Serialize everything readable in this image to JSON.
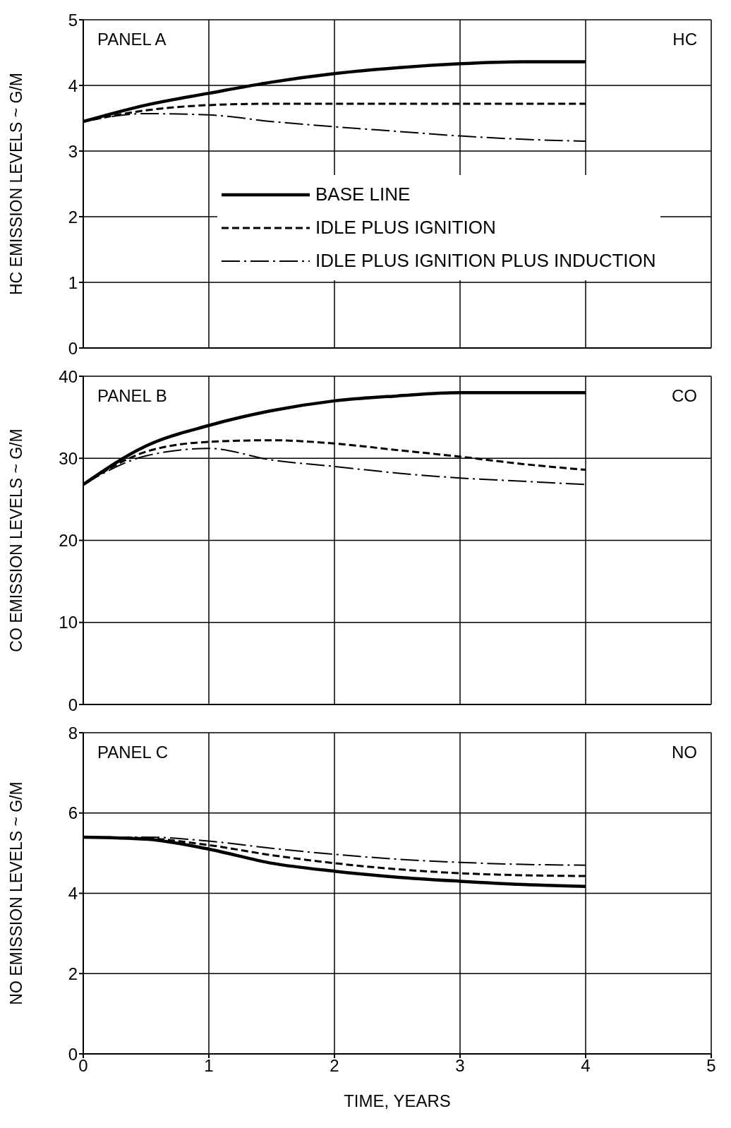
{
  "chart_data": [
    {
      "type": "line",
      "ylabel": "HC EMISSION LEVELS ~ G/M",
      "annotations": [
        "PANEL  A",
        "HC"
      ],
      "x": [
        0,
        0.5,
        1,
        1.5,
        2,
        2.5,
        3,
        3.5,
        4
      ],
      "xlim": [
        0,
        5
      ],
      "xticks": [
        0,
        1,
        2,
        3,
        4,
        5
      ],
      "ylim": [
        0,
        5
      ],
      "yticks": [
        0,
        1,
        2,
        3,
        4,
        5
      ],
      "grid": true,
      "tick_labels": "y",
      "legend": "center",
      "series": [
        {
          "name": "BASE  LINE",
          "color": "#000000",
          "line_style": "solid",
          "values": [
            3.45,
            3.7,
            3.88,
            4.05,
            4.18,
            4.27,
            4.33,
            4.36,
            4.36
          ]
        },
        {
          "name": "IDLE PLUS  IGNITION",
          "color": "#000000",
          "line_style": "dashed",
          "values": [
            3.45,
            3.62,
            3.7,
            3.72,
            3.72,
            3.72,
            3.72,
            3.72,
            3.72
          ]
        },
        {
          "name": "IDLE PLUS  IGNITION PLUS  INDUCTION",
          "color": "#000000",
          "line_style": "dashdot",
          "values": [
            3.45,
            3.57,
            3.55,
            3.45,
            3.37,
            3.3,
            3.23,
            3.18,
            3.15
          ]
        }
      ]
    },
    {
      "type": "line",
      "ylabel": "CO EMISSION LEVELS ~ G/M",
      "annotations": [
        "PANEL  B",
        "CO"
      ],
      "x": [
        0,
        0.5,
        1,
        1.5,
        2,
        2.5,
        3,
        3.5,
        4
      ],
      "xlim": [
        0,
        5
      ],
      "xticks": [
        0,
        1,
        2,
        3,
        4,
        5
      ],
      "ylim": [
        0,
        40
      ],
      "yticks": [
        0,
        10,
        20,
        30,
        40
      ],
      "grid": true,
      "tick_labels": "y",
      "series": [
        {
          "color": "#000000",
          "line_style": "solid",
          "values": [
            26.8,
            31.5,
            34,
            35.8,
            37,
            37.6,
            38,
            38,
            38
          ]
        },
        {
          "color": "#000000",
          "line_style": "dashed",
          "values": [
            26.8,
            30.8,
            32,
            32.2,
            31.8,
            31,
            30.2,
            29.3,
            28.6
          ]
        },
        {
          "color": "#000000",
          "line_style": "dashdot",
          "values": [
            26.8,
            30.3,
            31.2,
            29.8,
            29,
            28.2,
            27.6,
            27.2,
            26.8
          ]
        }
      ]
    },
    {
      "type": "line",
      "xlabel": "TIME,  YEARS",
      "ylabel": "NO EMISSION LEVELS ~ G/M",
      "annotations": [
        "PANEL  C",
        "NO"
      ],
      "x": [
        0,
        0.5,
        1,
        1.5,
        2,
        2.5,
        3,
        3.5,
        4
      ],
      "xlim": [
        0,
        5
      ],
      "xticks": [
        0,
        1,
        2,
        3,
        4,
        5
      ],
      "ylim": [
        0,
        8
      ],
      "yticks": [
        0,
        2,
        4,
        6,
        8
      ],
      "grid": true,
      "series": [
        {
          "color": "#000000",
          "line_style": "solid",
          "values": [
            5.4,
            5.35,
            5.1,
            4.75,
            4.55,
            4.4,
            4.3,
            4.22,
            4.17
          ]
        },
        {
          "color": "#000000",
          "line_style": "dashed",
          "values": [
            5.4,
            5.37,
            5.2,
            4.95,
            4.75,
            4.6,
            4.5,
            4.45,
            4.43
          ]
        },
        {
          "color": "#000000",
          "line_style": "dashdot",
          "values": [
            5.4,
            5.4,
            5.3,
            5.12,
            4.97,
            4.85,
            4.77,
            4.72,
            4.7
          ]
        }
      ]
    }
  ]
}
